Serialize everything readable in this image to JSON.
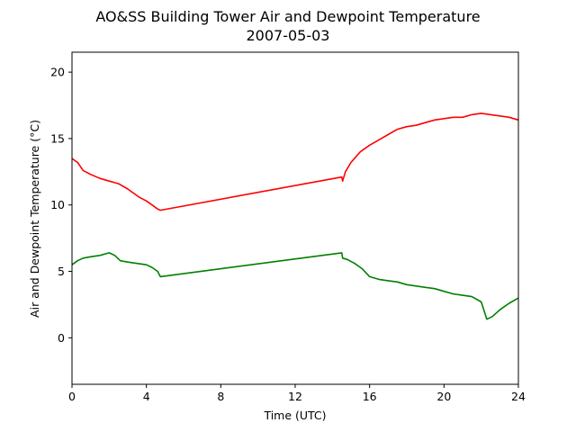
{
  "chart_data": {
    "type": "line",
    "title": "AO&SS Building Tower Air and Dewpoint Temperature",
    "subtitle": "2007-05-03",
    "xlabel": "Time (UTC)",
    "ylabel": "Air and Dewpoint Temperature (°C)",
    "xlim": [
      0,
      24
    ],
    "ylim": [
      -3.5,
      21.5
    ],
    "xticks": [
      0,
      4,
      8,
      12,
      16,
      20,
      24
    ],
    "yticks": [
      0,
      5,
      10,
      15,
      20
    ],
    "grid": false,
    "legend": "none",
    "series": [
      {
        "color": "#ff0000",
        "x": [
          0,
          0.3,
          0.6,
          1.0,
          1.5,
          2.0,
          2.5,
          3.0,
          3.3,
          3.6,
          4.0,
          4.3,
          4.6,
          4.75,
          14.5,
          14.55,
          14.7,
          15.0,
          15.5,
          16.0,
          16.5,
          17.0,
          17.5,
          18.0,
          18.5,
          19.0,
          19.5,
          20.0,
          20.5,
          21.0,
          21.5,
          22.0,
          22.5,
          23.0,
          23.5,
          24.0
        ],
        "y": [
          13.5,
          13.2,
          12.6,
          12.3,
          12.0,
          11.8,
          11.6,
          11.2,
          10.9,
          10.6,
          10.3,
          10.0,
          9.7,
          9.6,
          12.1,
          11.8,
          12.5,
          13.2,
          14.0,
          14.5,
          14.9,
          15.3,
          15.7,
          15.9,
          16.0,
          16.2,
          16.4,
          16.5,
          16.6,
          16.6,
          16.8,
          16.9,
          16.8,
          16.7,
          16.6,
          16.4
        ]
      },
      {
        "color": "#008000",
        "x": [
          0,
          0.3,
          0.6,
          1.0,
          1.5,
          2.0,
          2.3,
          2.6,
          3.0,
          3.5,
          4.0,
          4.3,
          4.6,
          4.75,
          14.5,
          14.55,
          14.8,
          15.2,
          15.6,
          16.0,
          16.5,
          17.0,
          17.5,
          18.0,
          18.5,
          19.0,
          19.5,
          20.0,
          20.5,
          21.0,
          21.5,
          22.0,
          22.3,
          22.6,
          23.0,
          23.5,
          24.0
        ],
        "y": [
          5.5,
          5.8,
          6.0,
          6.1,
          6.2,
          6.4,
          6.2,
          5.8,
          5.7,
          5.6,
          5.5,
          5.3,
          5.0,
          4.6,
          6.4,
          6.0,
          5.9,
          5.6,
          5.2,
          4.6,
          4.4,
          4.3,
          4.2,
          4.0,
          3.9,
          3.8,
          3.7,
          3.5,
          3.3,
          3.2,
          3.1,
          2.7,
          1.4,
          1.6,
          2.1,
          2.6,
          3.0
        ]
      }
    ]
  }
}
